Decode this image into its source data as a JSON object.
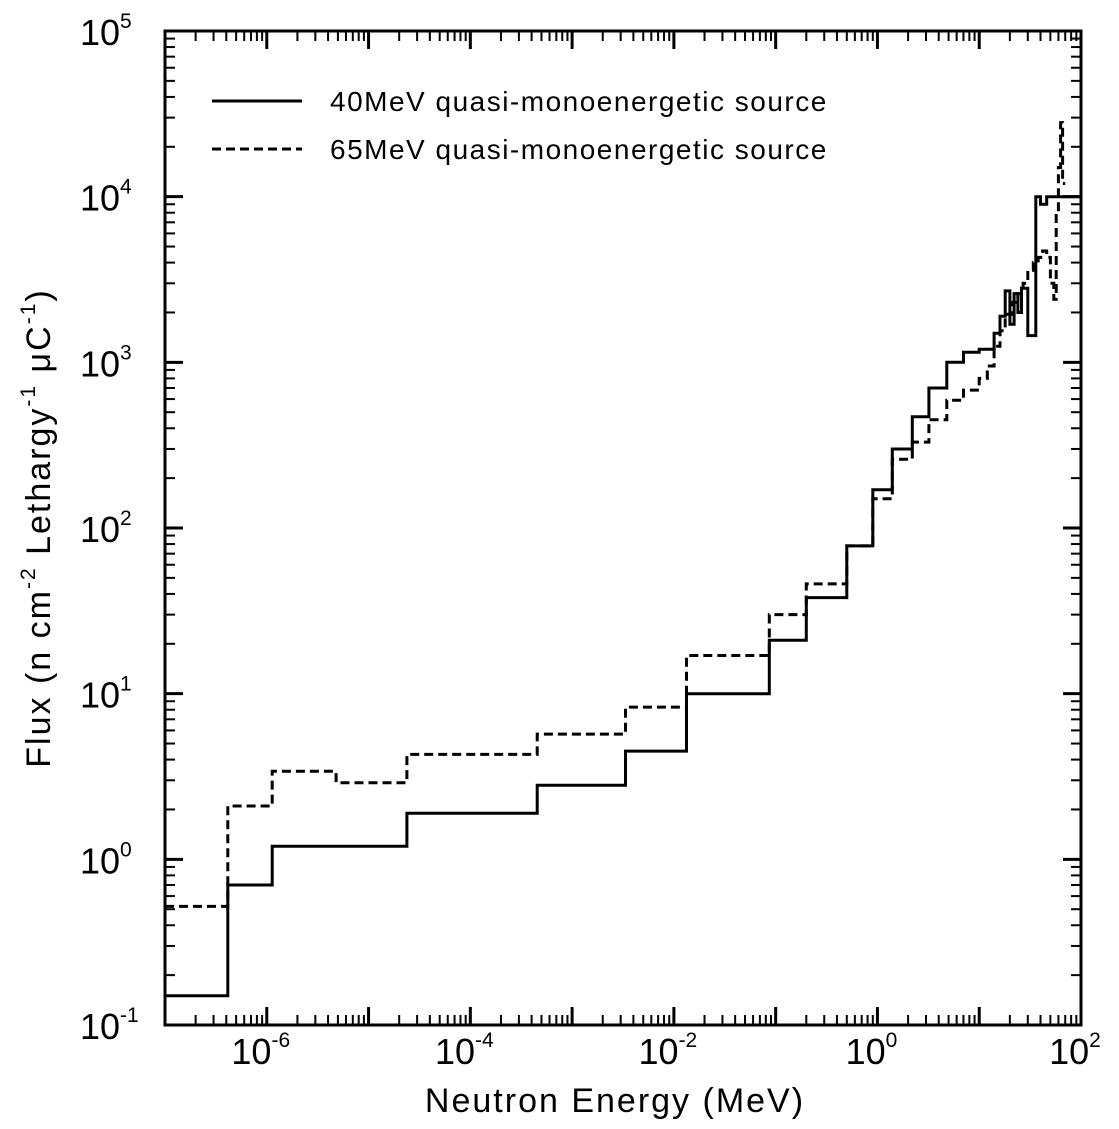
{
  "chart_data": {
    "type": "line",
    "xlabel": "Neutron Energy (MeV)",
    "ylabel": {
      "parts": [
        "Flux (n cm",
        "-2",
        " Lethargy",
        "-1",
        " μC",
        "-1",
        ")"
      ]
    },
    "x_scale": "log",
    "y_scale": "log",
    "xlim": [
      1e-07,
      100
    ],
    "ylim": [
      0.1,
      100000
    ],
    "x_ticks": [
      {
        "value": 1e-06,
        "base": "10",
        "exp": "-6"
      },
      {
        "value": 0.0001,
        "base": "10",
        "exp": "-4"
      },
      {
        "value": 0.01,
        "base": "10",
        "exp": "-2"
      },
      {
        "value": 1,
        "base": "10",
        "exp": "0"
      },
      {
        "value": 100,
        "base": "10",
        "exp": "2"
      }
    ],
    "y_ticks": [
      {
        "value": 0.1,
        "base": "10",
        "exp": "-1"
      },
      {
        "value": 1,
        "base": "10",
        "exp": "0"
      },
      {
        "value": 10,
        "base": "10",
        "exp": "1"
      },
      {
        "value": 100,
        "base": "10",
        "exp": "2"
      },
      {
        "value": 1000,
        "base": "10",
        "exp": "3"
      },
      {
        "value": 10000,
        "base": "10",
        "exp": "4"
      },
      {
        "value": 100000,
        "base": "10",
        "exp": "5"
      }
    ],
    "grid": false,
    "legend_position": "top-left",
    "series": [
      {
        "name": "40MeV quasi-monoenergetic source",
        "style": "solid",
        "color": "#000000",
        "steps": [
          {
            "x1": 1e-07,
            "x2": 4.14e-07,
            "y": 0.15
          },
          {
            "x1": 4.14e-07,
            "x2": 1.13e-06,
            "y": 0.7
          },
          {
            "x1": 1.13e-06,
            "x2": 2.38e-05,
            "y": 1.2
          },
          {
            "x1": 2.38e-05,
            "x2": 0.000454,
            "y": 1.9
          },
          {
            "x1": 0.000454,
            "x2": 0.00335,
            "y": 2.8
          },
          {
            "x1": 0.00335,
            "x2": 0.0133,
            "y": 4.5
          },
          {
            "x1": 0.0133,
            "x2": 0.0865,
            "y": 10
          },
          {
            "x1": 0.0865,
            "x2": 0.2,
            "y": 21
          },
          {
            "x1": 0.2,
            "x2": 0.5,
            "y": 38
          },
          {
            "x1": 0.5,
            "x2": 0.9,
            "y": 78
          },
          {
            "x1": 0.9,
            "x2": 1.4,
            "y": 170
          },
          {
            "x1": 1.4,
            "x2": 2.2,
            "y": 300
          },
          {
            "x1": 2.2,
            "x2": 3.2,
            "y": 470
          },
          {
            "x1": 3.2,
            "x2": 4.8,
            "y": 700
          },
          {
            "x1": 4.8,
            "x2": 7.0,
            "y": 1000
          },
          {
            "x1": 7.0,
            "x2": 10,
            "y": 1150
          },
          {
            "x1": 10,
            "x2": 14,
            "y": 1200
          },
          {
            "x1": 14,
            "x2": 16,
            "y": 1500
          },
          {
            "x1": 16,
            "x2": 18,
            "y": 1900
          },
          {
            "x1": 18,
            "x2": 20,
            "y": 2700
          },
          {
            "x1": 20,
            "x2": 22,
            "y": 1700
          },
          {
            "x1": 22,
            "x2": 24,
            "y": 2600
          },
          {
            "x1": 24,
            "x2": 26,
            "y": 2000
          },
          {
            "x1": 26,
            "x2": 30,
            "y": 2800
          },
          {
            "x1": 30,
            "x2": 36,
            "y": 1450
          },
          {
            "x1": 36,
            "x2": 40,
            "y": 10000
          },
          {
            "x1": 40,
            "x2": 46,
            "y": 9000
          },
          {
            "x1": 46,
            "x2": 100,
            "y": 10000
          }
        ]
      },
      {
        "name": "65MeV quasi-monoenergetic source",
        "style": "dashed",
        "color": "#000000",
        "steps": [
          {
            "x1": 1e-07,
            "x2": 4.14e-07,
            "y": 0.52
          },
          {
            "x1": 4.14e-07,
            "x2": 1.13e-06,
            "y": 2.1
          },
          {
            "x1": 1.13e-06,
            "x2": 4.8e-06,
            "y": 3.4
          },
          {
            "x1": 4.8e-06,
            "x2": 2.38e-05,
            "y": 2.9
          },
          {
            "x1": 2.38e-05,
            "x2": 0.000454,
            "y": 4.3
          },
          {
            "x1": 0.000454,
            "x2": 0.00335,
            "y": 5.7
          },
          {
            "x1": 0.00335,
            "x2": 0.0133,
            "y": 8.3
          },
          {
            "x1": 0.0133,
            "x2": 0.0865,
            "y": 17
          },
          {
            "x1": 0.0865,
            "x2": 0.2,
            "y": 30
          },
          {
            "x1": 0.2,
            "x2": 0.5,
            "y": 46
          },
          {
            "x1": 0.5,
            "x2": 0.9,
            "y": 78
          },
          {
            "x1": 0.9,
            "x2": 1.4,
            "y": 150
          },
          {
            "x1": 1.4,
            "x2": 2.2,
            "y": 260
          },
          {
            "x1": 2.2,
            "x2": 3.2,
            "y": 330
          },
          {
            "x1": 3.2,
            "x2": 4.8,
            "y": 450
          },
          {
            "x1": 4.8,
            "x2": 7.0,
            "y": 590
          },
          {
            "x1": 7.0,
            "x2": 10,
            "y": 680
          },
          {
            "x1": 10,
            "x2": 12,
            "y": 800
          },
          {
            "x1": 12,
            "x2": 14,
            "y": 950
          },
          {
            "x1": 14,
            "x2": 16,
            "y": 1250
          },
          {
            "x1": 16,
            "x2": 18,
            "y": 1550
          },
          {
            "x1": 18,
            "x2": 21,
            "y": 1950
          },
          {
            "x1": 21,
            "x2": 24,
            "y": 2300
          },
          {
            "x1": 24,
            "x2": 27,
            "y": 2600
          },
          {
            "x1": 27,
            "x2": 30,
            "y": 3000
          },
          {
            "x1": 30,
            "x2": 34,
            "y": 3600
          },
          {
            "x1": 34,
            "x2": 38,
            "y": 4000
          },
          {
            "x1": 38,
            "x2": 42,
            "y": 4300
          },
          {
            "x1": 42,
            "x2": 46,
            "y": 4700
          },
          {
            "x1": 46,
            "x2": 50,
            "y": 4300
          },
          {
            "x1": 50,
            "x2": 54,
            "y": 3000
          },
          {
            "x1": 54,
            "x2": 57,
            "y": 2400
          },
          {
            "x1": 57,
            "x2": 60,
            "y": 8000
          },
          {
            "x1": 60,
            "x2": 63,
            "y": 15000
          },
          {
            "x1": 63,
            "x2": 66,
            "y": 28000
          },
          {
            "x1": 66,
            "x2": 70,
            "y": 12000
          }
        ]
      }
    ]
  }
}
